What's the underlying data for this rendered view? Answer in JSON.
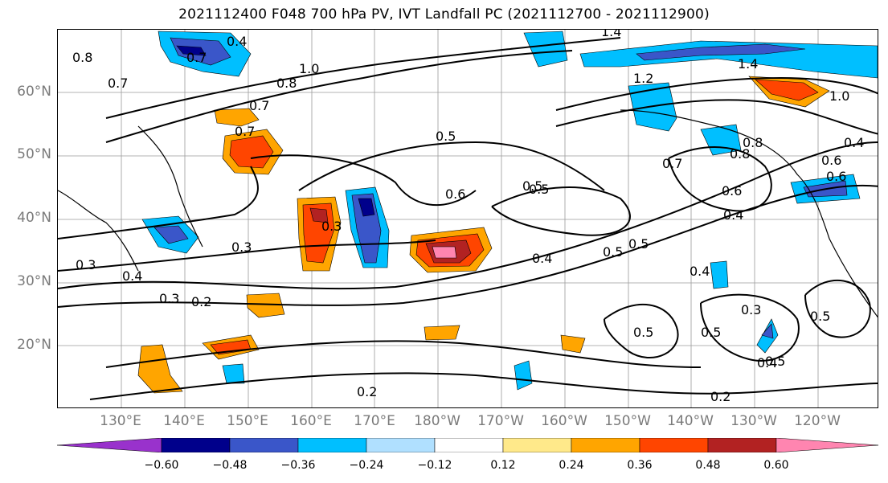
{
  "title": "2021112400 F048 700 hPa PV, IVT Landfall PC (2021112700 - 2021112900)",
  "map": {
    "lat_labels": [
      "60°N",
      "50°N",
      "40°N",
      "30°N",
      "20°N"
    ],
    "lon_labels": [
      "130°E",
      "140°E",
      "150°E",
      "160°E",
      "170°E",
      "180°W",
      "170°W",
      "160°W",
      "150°W",
      "140°W",
      "130°W",
      "120°W"
    ],
    "contour_labels": [
      "0.8",
      "0.4",
      "0.7",
      "1.0",
      "0.8",
      "1.4",
      "1.4",
      "1.2",
      "0.7",
      "0.5",
      "1.0",
      "0.4",
      "0.8",
      "0.6",
      "0.7",
      "0.5",
      "0.6",
      "0.5",
      "0.6",
      "0.4",
      "0.5",
      "0.7",
      "0.6",
      "0.4",
      "0.3",
      "0.3",
      "0.3",
      "0.4",
      "0.2",
      "0.3",
      "0.4",
      "0.5",
      "0.4",
      "0.3",
      "0.5",
      "0.5",
      "0.5",
      "0.5",
      "0.2",
      "0.2",
      "0.8",
      "0.7"
    ]
  },
  "colorbar": {
    "ticks": [
      "−0.60",
      "−0.48",
      "−0.36",
      "−0.24",
      "−0.12",
      "0.12",
      "0.24",
      "0.36",
      "0.48",
      "0.60"
    ],
    "colors": [
      "#9932CC",
      "#00008B",
      "#3A56C9",
      "#00BFFF",
      "#B0E0FF",
      "#FFFFFF",
      "#FFE98A",
      "#FFA500",
      "#FF4500",
      "#B22222",
      "#FF85B0"
    ]
  }
}
